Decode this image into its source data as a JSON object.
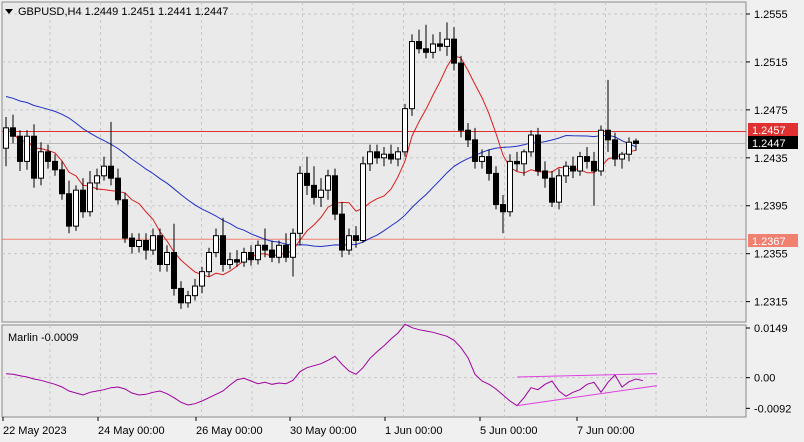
{
  "header": {
    "symbol_line": "GBPUSD,H4  1.2449 1.2451 1.2441 1.2447",
    "menu_icon": "triangle-down-icon"
  },
  "oscillator": {
    "label": "Marlin -0.0009"
  },
  "price_tags": {
    "resistance": "1.2457",
    "current": "1.2447",
    "support": "1.2367"
  },
  "colors": {
    "background": "#f0f0f0",
    "plot_bg": "#eaeaea",
    "grid": "#c8c8c8",
    "candle": "#000000",
    "ma_fast": "#dc1e1e",
    "ma_slow": "#1e2ec8",
    "marlin": "#a000a0",
    "trendline": "#e040e0",
    "resistance": "#e03030",
    "support": "#f08070",
    "current_tag_bg": "#000000"
  },
  "chart_data": [
    {
      "type": "candlestick",
      "symbol": "GBPUSD",
      "timeframe": "H4",
      "y_ticks": [
        1.2555,
        1.2515,
        1.2475,
        1.2435,
        1.2395,
        1.2355,
        1.2315
      ],
      "ylim": [
        1.2298,
        1.2565
      ],
      "x_ticks": [
        "22 May 2023",
        "24 May 00:00",
        "26 May 00:00",
        "30 May 00:00",
        "1 Jun 00:00",
        "5 Jun 00:00",
        "7 Jun 00:00"
      ],
      "horizontal_levels": [
        1.2457,
        1.2367
      ],
      "candles": [
        [
          1.2443,
          1.2469,
          1.2428,
          1.246
        ],
        [
          1.246,
          1.2471,
          1.2447,
          1.2453
        ],
        [
          1.2453,
          1.2458,
          1.2424,
          1.2432
        ],
        [
          1.2432,
          1.2458,
          1.2425,
          1.2453
        ],
        [
          1.2453,
          1.2463,
          1.241,
          1.2418
        ],
        [
          1.2418,
          1.2448,
          1.2412,
          1.244
        ],
        [
          1.244,
          1.2446,
          1.2426,
          1.2432
        ],
        [
          1.2432,
          1.2438,
          1.242,
          1.2425
        ],
        [
          1.2425,
          1.2432,
          1.24,
          1.2405
        ],
        [
          1.2405,
          1.2416,
          1.2372,
          1.2378
        ],
        [
          1.2378,
          1.2412,
          1.2374,
          1.2408
        ],
        [
          1.2408,
          1.2418,
          1.2385,
          1.239
        ],
        [
          1.239,
          1.2424,
          1.2386,
          1.2414
        ],
        [
          1.2414,
          1.2426,
          1.2408,
          1.242
        ],
        [
          1.242,
          1.2436,
          1.2416,
          1.2428
        ],
        [
          1.2428,
          1.2465,
          1.2412,
          1.2418
        ],
        [
          1.2418,
          1.2426,
          1.2396,
          1.24
        ],
        [
          1.24,
          1.2406,
          1.2364,
          1.2368
        ],
        [
          1.2368,
          1.2372,
          1.2355,
          1.2361
        ],
        [
          1.2361,
          1.2372,
          1.2356,
          1.2366
        ],
        [
          1.2366,
          1.2372,
          1.235,
          1.2358
        ],
        [
          1.2358,
          1.2376,
          1.2354,
          1.237
        ],
        [
          1.237,
          1.2376,
          1.234,
          1.2346
        ],
        [
          1.2346,
          1.2362,
          1.234,
          1.2356
        ],
        [
          1.2356,
          1.238,
          1.232,
          1.2326
        ],
        [
          1.2326,
          1.2332,
          1.2309,
          1.2314
        ],
        [
          1.2314,
          1.2324,
          1.231,
          1.232
        ],
        [
          1.232,
          1.2334,
          1.2316,
          1.2328
        ],
        [
          1.2328,
          1.2344,
          1.2322,
          1.234
        ],
        [
          1.234,
          1.236,
          1.2336,
          1.2356
        ],
        [
          1.2356,
          1.2376,
          1.2352,
          1.237
        ],
        [
          1.237,
          1.2385,
          1.234,
          1.2346
        ],
        [
          1.2346,
          1.2356,
          1.2342,
          1.235
        ],
        [
          1.235,
          1.2358,
          1.2344,
          1.2348
        ],
        [
          1.2348,
          1.236,
          1.2344,
          1.2356
        ],
        [
          1.2356,
          1.2362,
          1.2345,
          1.235
        ],
        [
          1.235,
          1.2366,
          1.2346,
          1.2362
        ],
        [
          1.2362,
          1.2376,
          1.2352,
          1.2358
        ],
        [
          1.2358,
          1.2366,
          1.2348,
          1.2352
        ],
        [
          1.2352,
          1.2366,
          1.2347,
          1.2362
        ],
        [
          1.2362,
          1.2372,
          1.2348,
          1.2352
        ],
        [
          1.2352,
          1.2376,
          1.2336,
          1.2372
        ],
        [
          1.2372,
          1.2428,
          1.2362,
          1.2422
        ],
        [
          1.2422,
          1.2436,
          1.2404,
          1.2412
        ],
        [
          1.2412,
          1.2428,
          1.2396,
          1.2402
        ],
        [
          1.2402,
          1.2418,
          1.2394,
          1.2408
        ],
        [
          1.2408,
          1.2425,
          1.24,
          1.242
        ],
        [
          1.242,
          1.2426,
          1.2383,
          1.2388
        ],
        [
          1.2388,
          1.2398,
          1.2352,
          1.2358
        ],
        [
          1.2358,
          1.2376,
          1.2354,
          1.237
        ],
        [
          1.237,
          1.2378,
          1.236,
          1.2366
        ],
        [
          1.2366,
          1.2436,
          1.2364,
          1.243
        ],
        [
          1.243,
          1.2446,
          1.2424,
          1.244
        ],
        [
          1.244,
          1.2446,
          1.243,
          1.2435
        ],
        [
          1.2435,
          1.2444,
          1.2428,
          1.2438
        ],
        [
          1.2438,
          1.2446,
          1.243,
          1.2434
        ],
        [
          1.2434,
          1.2444,
          1.2428,
          1.244
        ],
        [
          1.244,
          1.248,
          1.2436,
          1.2476
        ],
        [
          1.2476,
          1.2538,
          1.247,
          1.2532
        ],
        [
          1.2532,
          1.2542,
          1.2522,
          1.2526
        ],
        [
          1.2526,
          1.2546,
          1.2518,
          1.2523
        ],
        [
          1.2523,
          1.2538,
          1.2518,
          1.253
        ],
        [
          1.253,
          1.254,
          1.2524,
          1.2528
        ],
        [
          1.2528,
          1.2548,
          1.252,
          1.2534
        ],
        [
          1.2534,
          1.2544,
          1.2508,
          1.2514
        ],
        [
          1.2514,
          1.252,
          1.2452,
          1.2458
        ],
        [
          1.2458,
          1.2464,
          1.2444,
          1.245
        ],
        [
          1.245,
          1.246,
          1.2426,
          1.2432
        ],
        [
          1.2432,
          1.2442,
          1.2426,
          1.2436
        ],
        [
          1.2436,
          1.2442,
          1.2416,
          1.2422
        ],
        [
          1.2422,
          1.2428,
          1.2392,
          1.2396
        ],
        [
          1.2396,
          1.2404,
          1.2372,
          1.239
        ],
        [
          1.239,
          1.2438,
          1.2386,
          1.2432
        ],
        [
          1.2432,
          1.244,
          1.2424,
          1.243
        ],
        [
          1.243,
          1.2442,
          1.242,
          1.244
        ],
        [
          1.244,
          1.2458,
          1.2436,
          1.2454
        ],
        [
          1.2454,
          1.246,
          1.242,
          1.2424
        ],
        [
          1.2424,
          1.2432,
          1.241,
          1.2418
        ],
        [
          1.2418,
          1.2424,
          1.2394,
          1.2398
        ],
        [
          1.2398,
          1.2426,
          1.2392,
          1.242
        ],
        [
          1.242,
          1.2432,
          1.2414,
          1.2428
        ],
        [
          1.2428,
          1.2436,
          1.2418,
          1.2424
        ],
        [
          1.2424,
          1.244,
          1.242,
          1.2436
        ],
        [
          1.2436,
          1.2444,
          1.2426,
          1.2432
        ],
        [
          1.2432,
          1.244,
          1.2395,
          1.2424
        ],
        [
          1.2424,
          1.2462,
          1.242,
          1.2458
        ],
        [
          1.2458,
          1.25,
          1.244,
          1.245
        ],
        [
          1.245,
          1.2456,
          1.2428,
          1.2434
        ],
        [
          1.2434,
          1.244,
          1.2426,
          1.2438
        ],
        [
          1.2438,
          1.2452,
          1.2432,
          1.2448
        ],
        [
          1.2449,
          1.2451,
          1.2441,
          1.2447
        ]
      ]
    },
    {
      "type": "line",
      "name": "Marlin",
      "current_value": -0.0009,
      "y_ticks": [
        0.0149,
        0.0,
        -0.0092
      ],
      "ylim": [
        -0.0118,
        0.0158
      ],
      "values": [
        0.0012,
        0.001,
        0.0006,
        0.0002,
        -0.0004,
        -0.0008,
        -0.0014,
        -0.002,
        -0.0028,
        -0.004,
        -0.0046,
        -0.0052,
        -0.0044,
        -0.004,
        -0.0036,
        -0.003,
        -0.0028,
        -0.0034,
        -0.0046,
        -0.0052,
        -0.005,
        -0.0044,
        -0.004,
        -0.0048,
        -0.006,
        -0.0074,
        -0.0082,
        -0.0078,
        -0.007,
        -0.006,
        -0.005,
        -0.004,
        -0.0022,
        -0.0006,
        -0.0002,
        -0.001,
        -0.0018,
        -0.0014,
        -0.002,
        -0.0016,
        -0.0018,
        -0.0008,
        0.0018,
        0.003,
        0.0036,
        0.0042,
        0.0052,
        0.0064,
        0.004,
        0.002,
        0.001,
        0.003,
        0.0058,
        0.0078,
        0.0096,
        0.0116,
        0.0134,
        0.016,
        0.015,
        0.0144,
        0.014,
        0.0136,
        0.013,
        0.0124,
        0.0112,
        0.009,
        0.006,
        0.001,
        -0.001,
        -0.002,
        -0.0034,
        -0.0052,
        -0.007,
        -0.0084,
        -0.006,
        -0.003,
        -0.0036,
        -0.002,
        -0.001,
        -0.004,
        -0.0056,
        -0.0044,
        -0.0036,
        -0.002,
        -0.0014,
        -0.0044,
        -0.0014,
        0.0008,
        -0.0028,
        -0.0012,
        -0.0004,
        -0.0009
      ]
    }
  ]
}
